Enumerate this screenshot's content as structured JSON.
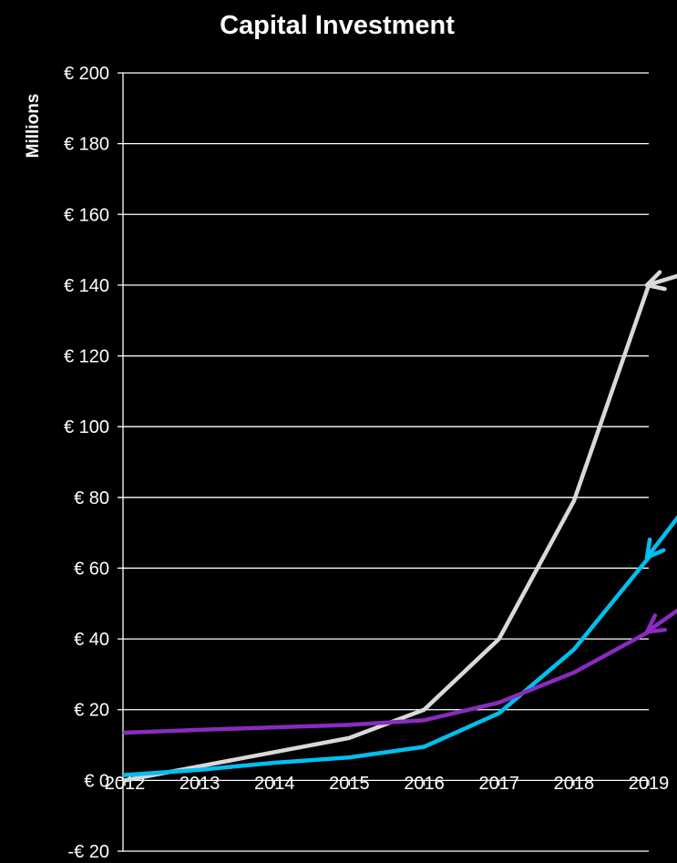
{
  "chart_data": {
    "type": "line",
    "title": "Capital Investment",
    "xlabel": "",
    "ylabel": "Millions",
    "x": [
      2012,
      2013,
      2014,
      2015,
      2016,
      2017,
      2018,
      2019
    ],
    "x_tick_labels": [
      "2012",
      "2013",
      "2014",
      "2015",
      "2016",
      "2017",
      "2018",
      "2019"
    ],
    "ylim": [
      -20,
      200
    ],
    "y_ticks": [
      -20,
      0,
      20,
      40,
      60,
      80,
      100,
      120,
      140,
      160,
      180,
      200
    ],
    "y_tick_labels": [
      "-€ 20",
      "€ 0",
      "€ 20",
      "€ 40",
      "€ 60",
      "€ 80",
      "€ 100",
      "€ 120",
      "€ 140",
      "€ 160",
      "€ 180",
      "€ 200"
    ],
    "grid": true,
    "legend": "none",
    "series": [
      {
        "color": "#d9d9d9",
        "values": [
          0,
          4,
          8,
          12,
          20,
          40,
          79,
          140
        ]
      },
      {
        "color": "#00c0f0",
        "values": [
          1.5,
          3,
          5,
          6.5,
          9.5,
          19,
          37,
          63
        ]
      },
      {
        "color": "#8a2bbf",
        "values": [
          13.5,
          14.3,
          15,
          15.7,
          17,
          22,
          30.5,
          42
        ]
      }
    ],
    "annotations": [
      {
        "type": "arrow",
        "series": 0,
        "at_x": 2019,
        "color": "#d9d9d9"
      },
      {
        "type": "arrow",
        "series": 1,
        "at_x": 2019,
        "color": "#00c0f0"
      },
      {
        "type": "arrow",
        "series": 2,
        "at_x": 2019,
        "color": "#8a2bbf"
      }
    ]
  }
}
